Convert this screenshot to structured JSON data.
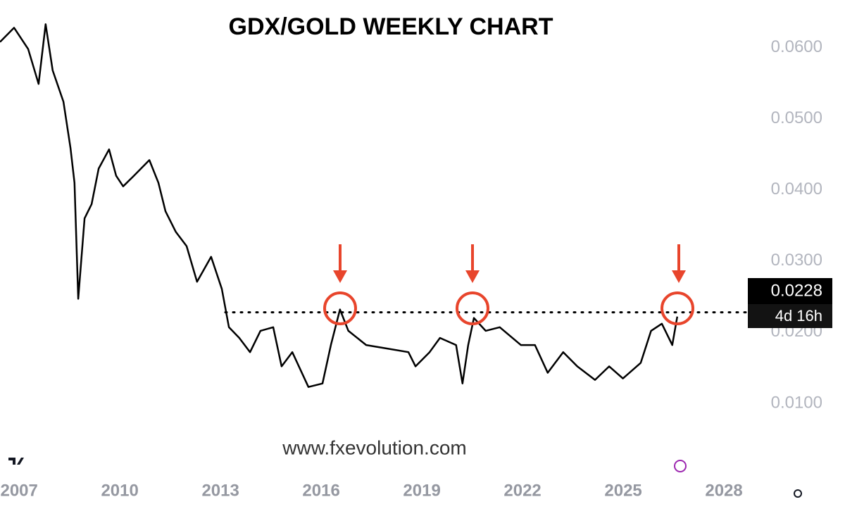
{
  "chart_data": {
    "type": "line",
    "title": "GDX/GOLD WEEKLY CHART",
    "watermark": "www.fxevolution.com",
    "x": [
      2006.43,
      2006.85,
      2007.27,
      2007.58,
      2007.79,
      2008.0,
      2008.32,
      2008.53,
      2008.65,
      2008.76,
      2008.95,
      2009.16,
      2009.37,
      2009.68,
      2009.89,
      2010.1,
      2010.42,
      2010.88,
      2011.15,
      2011.36,
      2011.67,
      2011.99,
      2012.3,
      2012.72,
      2013.04,
      2013.25,
      2013.56,
      2013.88,
      2014.19,
      2014.57,
      2014.82,
      2015.14,
      2015.62,
      2016.04,
      2016.29,
      2016.56,
      2016.81,
      2017.34,
      2017.97,
      2018.6,
      2018.81,
      2019.23,
      2019.54,
      2020.02,
      2020.21,
      2020.38,
      2020.55,
      2020.9,
      2021.32,
      2021.95,
      2022.37,
      2022.75,
      2023.21,
      2023.63,
      2024.16,
      2024.58,
      2024.99,
      2025.52,
      2025.83,
      2026.15,
      2026.46,
      2026.61
    ],
    "series": [
      {
        "name": "GDX/GOLD",
        "color": "#000000",
        "values": [
          0.0608,
          0.0628,
          0.0598,
          0.0549,
          0.0633,
          0.0568,
          0.0524,
          0.0459,
          0.041,
          0.0247,
          0.036,
          0.038,
          0.043,
          0.0457,
          0.042,
          0.0405,
          0.042,
          0.0442,
          0.041,
          0.037,
          0.0341,
          0.0321,
          0.0271,
          0.0306,
          0.0261,
          0.0207,
          0.0192,
          0.0172,
          0.0202,
          0.0207,
          0.0152,
          0.0172,
          0.0123,
          0.0128,
          0.0182,
          0.0232,
          0.0202,
          0.0182,
          0.0177,
          0.0172,
          0.0152,
          0.0172,
          0.0192,
          0.0182,
          0.0128,
          0.0182,
          0.022,
          0.0202,
          0.0207,
          0.0182,
          0.0182,
          0.0143,
          0.0172,
          0.0152,
          0.0133,
          0.0152,
          0.0135,
          0.0157,
          0.0202,
          0.0212,
          0.0182,
          0.0222
        ]
      }
    ],
    "last_price": 0.0228,
    "countdown": "4d 16h",
    "xlim": [
      2006.43,
      2028.67
    ],
    "xticks": [
      2007,
      2010,
      2013,
      2016,
      2019,
      2022,
      2025,
      2028
    ],
    "ylim": [
      0,
      0.0667
    ],
    "yticks": [
      {
        "value": 0.01,
        "label": "0.0100"
      },
      {
        "value": 0.02,
        "label": "0.0200"
      },
      {
        "value": 0.03,
        "label": "0.0300"
      },
      {
        "value": 0.04,
        "label": "0.0400"
      },
      {
        "value": 0.05,
        "label": "0.0500"
      },
      {
        "value": 0.06,
        "label": "0.0600"
      }
    ],
    "grid": false
  }
}
